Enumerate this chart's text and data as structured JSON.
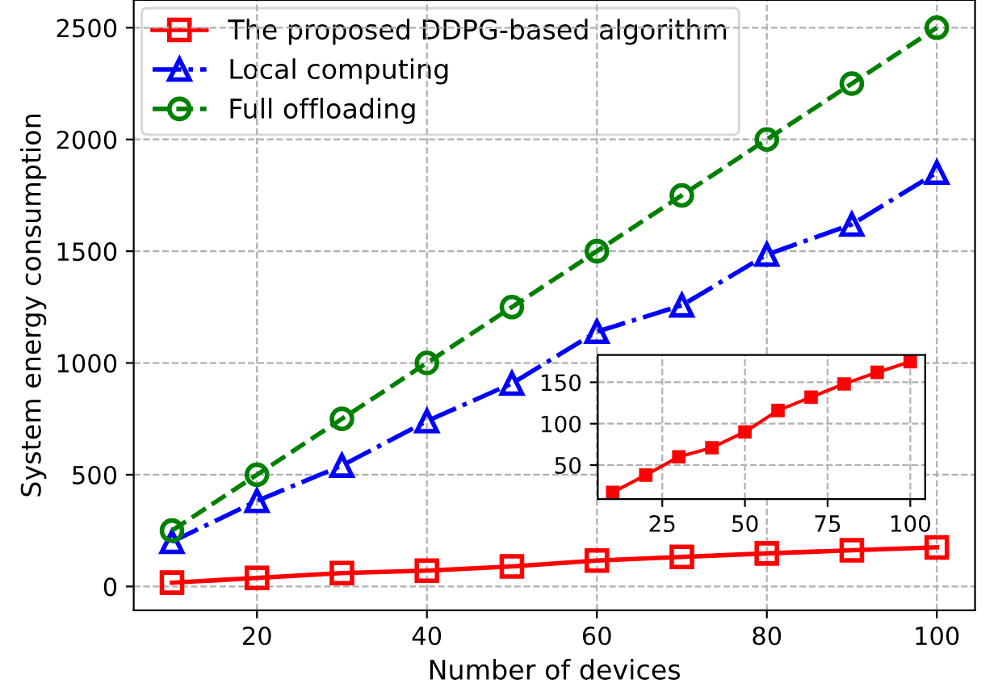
{
  "chart_data": [
    {
      "type": "line",
      "xlabel": "Number of devices",
      "ylabel": "System energy consumption",
      "x": [
        10,
        20,
        30,
        40,
        50,
        60,
        70,
        80,
        90,
        100
      ],
      "xlim": [
        5.5,
        104.5
      ],
      "xticks": [
        20,
        40,
        60,
        80,
        100
      ],
      "ylim": [
        -107,
        2624
      ],
      "yticks": [
        0,
        500,
        1000,
        1500,
        2000,
        2500
      ],
      "grid": true,
      "legend": "top left",
      "series": [
        {
          "name": "The proposed DDPG-based algorithm",
          "color": "#ff0000",
          "marker": "square",
          "line_style": "solid",
          "values": [
            17,
            38,
            60,
            71,
            90,
            116,
            132,
            148,
            162,
            175
          ]
        },
        {
          "name": "Local computing",
          "color": "#0000ff",
          "marker": "triangle",
          "line_style": "dashdot",
          "values": [
            200,
            383,
            541,
            740,
            908,
            1140,
            1258,
            1485,
            1620,
            1852
          ]
        },
        {
          "name": "Full offloading",
          "color": "#008000",
          "marker": "circle",
          "line_style": "dashed",
          "values": [
            250,
            500,
            750,
            1000,
            1250,
            1500,
            1750,
            2000,
            2250,
            2500
          ]
        }
      ]
    },
    {
      "type": "line",
      "x": [
        10,
        20,
        30,
        40,
        50,
        60,
        70,
        80,
        90,
        100
      ],
      "xlim": [
        5.5,
        104.5
      ],
      "xticks": [
        25,
        50,
        75,
        100
      ],
      "ylim": [
        9,
        183
      ],
      "yticks": [
        50,
        100,
        150
      ],
      "grid": true,
      "series": [
        {
          "color": "#ff0000",
          "marker": "square",
          "line_style": "solid",
          "values": [
            17,
            38,
            60,
            71,
            90,
            116,
            132,
            148,
            162,
            175
          ]
        }
      ]
    }
  ]
}
